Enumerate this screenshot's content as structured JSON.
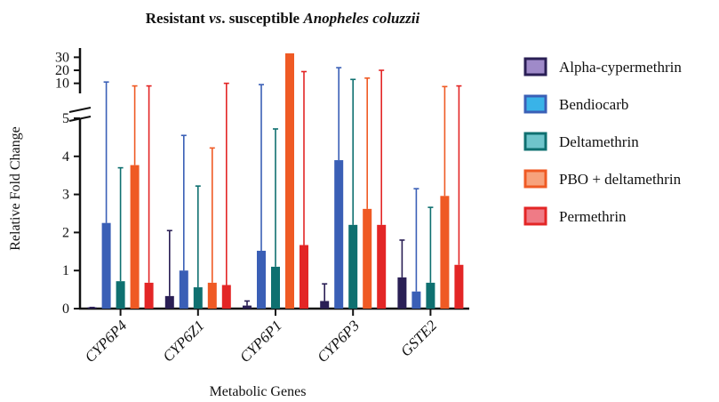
{
  "chart_data": {
    "type": "bar",
    "title_parts": [
      {
        "text": "Resistant ",
        "italic": false
      },
      {
        "text": "vs",
        "italic": true
      },
      {
        "text": ". susceptible ",
        "italic": false
      },
      {
        "text": "Anopheles coluzzii",
        "italic": true
      }
    ],
    "xlabel": "Metabolic Genes",
    "ylabel": "Relative Fold Change",
    "categories": [
      "CYP6P4",
      "CYP6Z1",
      "CYP6P1",
      "CYP6P3",
      "GSTE2"
    ],
    "y_axis": {
      "broken": true,
      "lower_range": [
        0,
        5
      ],
      "lower_ticks": [
        0,
        1,
        2,
        3,
        4,
        5
      ],
      "upper_range": [
        5,
        33
      ],
      "upper_ticks": [
        10,
        20,
        30
      ]
    },
    "series": [
      {
        "name": "Alpha-cypermethrin",
        "color": "#2a1f55",
        "legend_fill": "#9f8ac9",
        "values": [
          0.03,
          0.33,
          0.08,
          0.2,
          0.82
        ],
        "error_upper": [
          0.03,
          2.05,
          0.2,
          0.65,
          1.8
        ]
      },
      {
        "name": "Bendiocarb",
        "color": "#3a5fb6",
        "legend_fill": "#39b3e8",
        "values": [
          2.25,
          1.0,
          1.52,
          3.9,
          0.45
        ],
        "error_upper": [
          11,
          4.55,
          9,
          22,
          3.15
        ]
      },
      {
        "name": "Deltamethrin",
        "color": "#0f7070",
        "legend_fill": "#6fc5cb",
        "values": [
          0.72,
          0.56,
          1.1,
          2.2,
          0.68
        ],
        "error_upper": [
          3.7,
          3.22,
          4.72,
          13,
          2.66
        ]
      },
      {
        "name": "PBO + deltamethrin",
        "color": "#ef5a24",
        "legend_fill": "#f7a27c",
        "values": [
          3.77,
          0.68,
          33,
          2.62,
          2.96
        ],
        "error_upper": [
          8,
          4.22,
          31,
          14,
          7.5
        ]
      },
      {
        "name": "Permethrin",
        "color": "#e32626",
        "legend_fill": "#ef7b86",
        "values": [
          0.68,
          0.62,
          1.67,
          2.2,
          1.15
        ],
        "error_upper": [
          8,
          10,
          19,
          20,
          8
        ]
      }
    ],
    "legend_position": "right",
    "grid": false
  }
}
